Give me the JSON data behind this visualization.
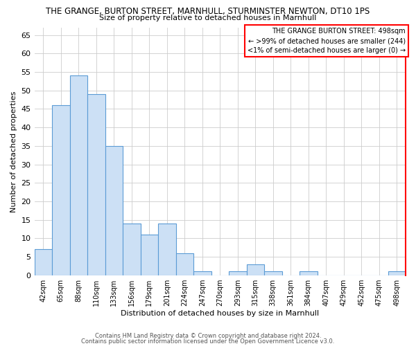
{
  "title": "THE GRANGE, BURTON STREET, MARNHULL, STURMINSTER NEWTON, DT10 1PS",
  "subtitle": "Size of property relative to detached houses in Marnhull",
  "xlabel": "Distribution of detached houses by size in Marnhull",
  "ylabel": "Number of detached properties",
  "categories": [
    "42sqm",
    "65sqm",
    "88sqm",
    "110sqm",
    "133sqm",
    "156sqm",
    "179sqm",
    "201sqm",
    "224sqm",
    "247sqm",
    "270sqm",
    "293sqm",
    "315sqm",
    "338sqm",
    "361sqm",
    "384sqm",
    "407sqm",
    "429sqm",
    "452sqm",
    "475sqm",
    "498sqm"
  ],
  "values": [
    7,
    46,
    54,
    49,
    35,
    14,
    11,
    14,
    6,
    1,
    0,
    1,
    3,
    1,
    0,
    1,
    0,
    0,
    0,
    0,
    1
  ],
  "bar_color": "#cce0f5",
  "bar_edge_color": "#5b9bd5",
  "highlight_line_color": "#ff0000",
  "ylim": [
    0,
    67
  ],
  "yticks": [
    0,
    5,
    10,
    15,
    20,
    25,
    30,
    35,
    40,
    45,
    50,
    55,
    60,
    65
  ],
  "annotation_title": "THE GRANGE BURTON STREET: 498sqm",
  "annotation_line1": "← >99% of detached houses are smaller (244)",
  "annotation_line2": "<1% of semi-detached houses are larger (0) →",
  "annotation_box_color": "#ffffff",
  "annotation_box_edge": "#ff0000",
  "footer1": "Contains HM Land Registry data © Crown copyright and database right 2024.",
  "footer2": "Contains public sector information licensed under the Open Government Licence v3.0.",
  "background_color": "#ffffff",
  "grid_color": "#cccccc"
}
